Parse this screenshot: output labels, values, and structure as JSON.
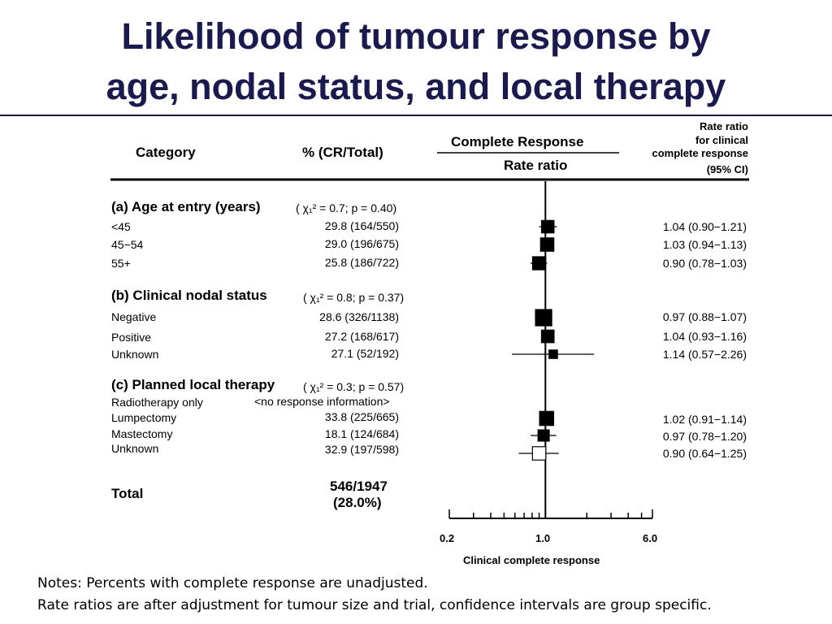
{
  "title_line1": "Likelihood of tumour response by",
  "title_line2": "age, nodal status, and local therapy",
  "headers": {
    "category": "Category",
    "pct": "% (CR/Total)",
    "cr": "Complete Response",
    "rate_ratio": "Rate ratio",
    "right_line1": "Rate ratio",
    "right_line2": "for clinical",
    "right_line3": "complete response",
    "right_line4": "(95% CI)"
  },
  "groups": [
    {
      "label": "(a) Age at entry (years)",
      "chi": "( χ₁² = 0.7;  p = 0.40)"
    },
    {
      "label": "(b) Clinical nodal status",
      "chi": "( χ₁² = 0.8;  p = 0.37)"
    },
    {
      "label": "(c)  Planned local therapy",
      "chi": "( χ₁² = 0.3;  p = 0.57)"
    }
  ],
  "rows": [
    {
      "label": "<45",
      "pct": "29.8  (164/550)",
      "ci": "1.04 (0.90−1.21)"
    },
    {
      "label": "45−54",
      "pct": "29.0  (196/675)",
      "ci": "1.03 (0.94−1.13)"
    },
    {
      "label": "55+",
      "pct": "25.8  (186/722)",
      "ci": "0.90 (0.78−1.03)"
    },
    {
      "label": "Negative",
      "pct": "28.6  (326/1138)",
      "ci": "0.97 (0.88−1.07)"
    },
    {
      "label": "Positive",
      "pct": "27.2  (168/617)",
      "ci": "1.04 (0.93−1.16)"
    },
    {
      "label": "Unknown",
      "pct": "27.1  (52/192)",
      "ci": "1.14 (0.57−2.26)"
    },
    {
      "label": "Radiotherapy only",
      "pct": "<no response information>",
      "ci": ""
    },
    {
      "label": "Lumpectomy",
      "pct": "33.8  (225/665)",
      "ci": "1.02 (0.91−1.14)"
    },
    {
      "label": "Mastectomy",
      "pct": "18.1  (124/684)",
      "ci": "0.97 (0.78−1.20)"
    },
    {
      "label": "Unknown",
      "pct": "32.9  (197/598)",
      "ci": "0.90 (0.64−1.25)"
    }
  ],
  "total": {
    "label": "Total",
    "value": "546/1947",
    "pct": "(28.0%)"
  },
  "notes": {
    "line1": "Notes: Percents with complete response are unadjusted.",
    "line2": "Rate ratios are after adjustment for tumour size and trial, confidence intervals are group specific."
  },
  "chart_data": {
    "type": "forest",
    "x_scale": "log",
    "xlim": [
      0.2,
      6.0
    ],
    "xticks": [
      "0.2",
      "1.0",
      "6.0"
    ],
    "xlabel": "Clinical complete response",
    "reference_line": 1.0,
    "points": [
      {
        "label": "<45",
        "estimate": 1.04,
        "lower": 0.9,
        "upper": 1.21,
        "weight": 164
      },
      {
        "label": "45−54",
        "estimate": 1.03,
        "lower": 0.94,
        "upper": 1.13,
        "weight": 196
      },
      {
        "label": "55+",
        "estimate": 0.9,
        "lower": 0.78,
        "upper": 1.03,
        "weight": 186
      },
      {
        "label": "Negative",
        "estimate": 0.97,
        "lower": 0.88,
        "upper": 1.07,
        "weight": 326
      },
      {
        "label": "Positive",
        "estimate": 1.04,
        "lower": 0.93,
        "upper": 1.16,
        "weight": 168
      },
      {
        "label": "Unknown",
        "estimate": 1.14,
        "lower": 0.57,
        "upper": 2.26,
        "weight": 52
      },
      {
        "label": "Lumpectomy",
        "estimate": 1.02,
        "lower": 0.91,
        "upper": 1.14,
        "weight": 225
      },
      {
        "label": "Mastectomy",
        "estimate": 0.97,
        "lower": 0.78,
        "upper": 1.2,
        "weight": 124
      },
      {
        "label": "Unknown",
        "estimate": 0.9,
        "lower": 0.64,
        "upper": 1.25,
        "weight": 197
      }
    ]
  }
}
